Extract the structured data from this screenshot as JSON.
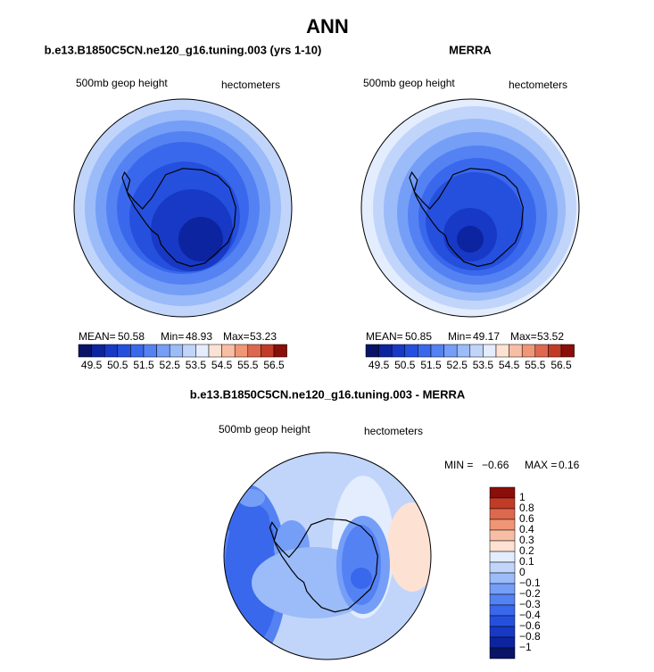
{
  "title": "ANN",
  "panels": [
    {
      "title": "b.e13.B1850C5CN.ne120_g16.tuning.003 (yrs 1-10)",
      "left_label": "500mb geop height",
      "right_label": "hectometers",
      "stats": [
        "MEAN=",
        "50.58",
        "Min=",
        "48.93",
        "Max=",
        "53.23"
      ]
    },
    {
      "title": "MERRA",
      "left_label": "500mb geop height",
      "right_label": "hectometers",
      "stats": [
        "MEAN=",
        "50.85",
        "Min=",
        "49.17",
        "Max=",
        "53.52"
      ]
    }
  ],
  "colorbar_labels": [
    "49.5",
    "50.5",
    "51.5",
    "52.5",
    "53.5",
    "54.5",
    "55.5",
    "56.5"
  ],
  "difference": {
    "title": "b.e13.B1850C5CN.ne120_g16.tuning.003 - MERRA",
    "left_label": "500mb geop height",
    "right_label": "hectometers",
    "stats": [
      "MIN =",
      "−0.66",
      "MAX =",
      "0.16"
    ],
    "colorbar_labels": [
      "1",
      "0.8",
      "0.6",
      "0.4",
      "0.3",
      "0.2",
      "0.1",
      "0",
      "−0.1",
      "−0.2",
      "−0.3",
      "−0.4",
      "−0.6",
      "−0.8",
      "−1"
    ]
  }
}
